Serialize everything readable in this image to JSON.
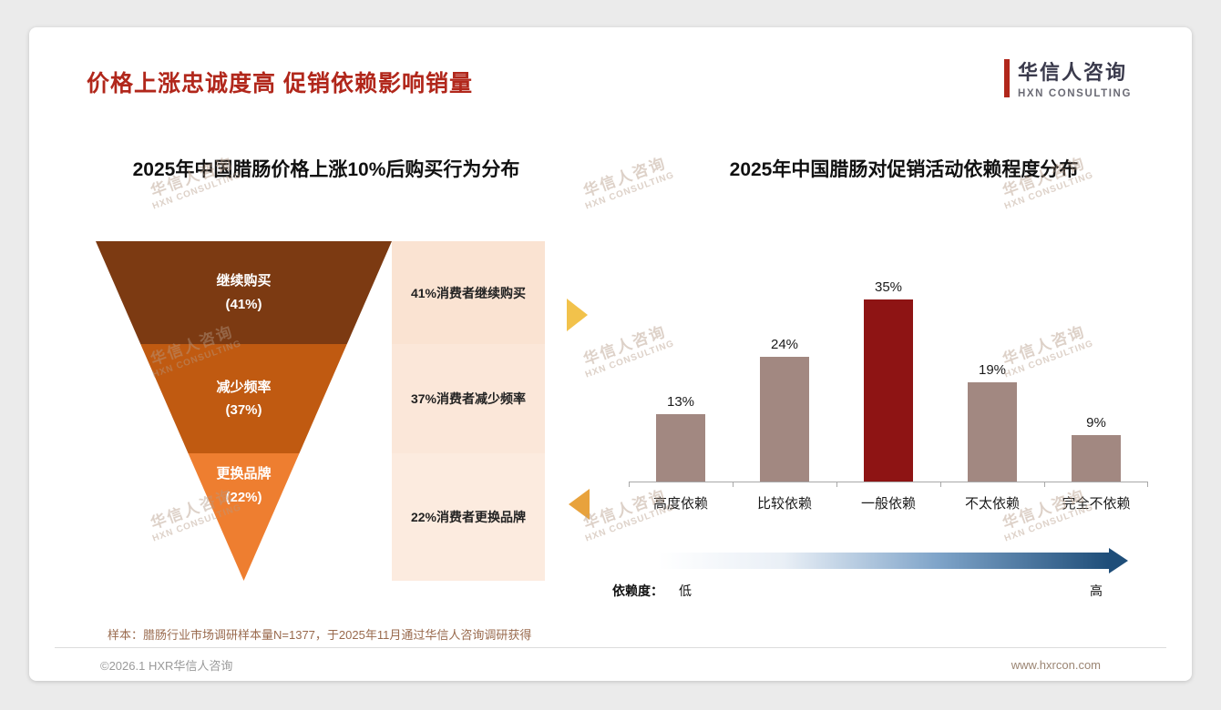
{
  "header": {
    "title": "价格上涨忠诚度高 促销依赖影响销量",
    "logo": {
      "name": "华信人咨询",
      "sub": "HXN CONSULTING"
    }
  },
  "watermark": {
    "line1": "华信人咨询",
    "line2": "HXN CONSULTING"
  },
  "chart_data": [
    {
      "type": "funnel",
      "title": "2025年中国腊肠价格上涨10%后购买行为分布",
      "segments": [
        {
          "label": "继续购买",
          "value": 41,
          "value_label": "(41%)",
          "annotation": "41%消费者继续购买",
          "color": "#7C3A12",
          "panel_color": "#FAE3D2"
        },
        {
          "label": "减少频率",
          "value": 37,
          "value_label": "(37%)",
          "annotation": "37%消费者减少频率",
          "color": "#C05A11",
          "panel_color": "#FBE7D9"
        },
        {
          "label": "更换品牌",
          "value": 22,
          "value_label": "(22%)",
          "annotation": "22%消费者更换品牌",
          "color": "#EE7E30",
          "panel_color": "#FCEBDF"
        }
      ]
    },
    {
      "type": "bar",
      "title": "2025年中国腊肠对促销活动依赖程度分布",
      "categories": [
        "高度依赖",
        "比较依赖",
        "一般依赖",
        "不太依赖",
        "完全不依赖"
      ],
      "values": [
        13,
        24,
        35,
        19,
        9
      ],
      "value_suffix": "%",
      "bar_colors": [
        "#A28881",
        "#A28881",
        "#8E1414",
        "#A28881",
        "#A28881"
      ],
      "highlight_color": "#8E1414",
      "ylim": [
        0,
        38
      ],
      "grid": false,
      "legend": "none",
      "dependency_axis": {
        "label": "依赖度：",
        "low": "低",
        "high": "高",
        "gradient_start": "#FFFFFF",
        "gradient_end": "#1F4E79"
      }
    }
  ],
  "footnote": "样本：腊肠行业市场调研样本量N=1377，于2025年11月通过华信人咨询调研获得",
  "footer": {
    "copyright": "©2026.1 HXR华信人咨询",
    "website": "www.hxrcon.com"
  }
}
